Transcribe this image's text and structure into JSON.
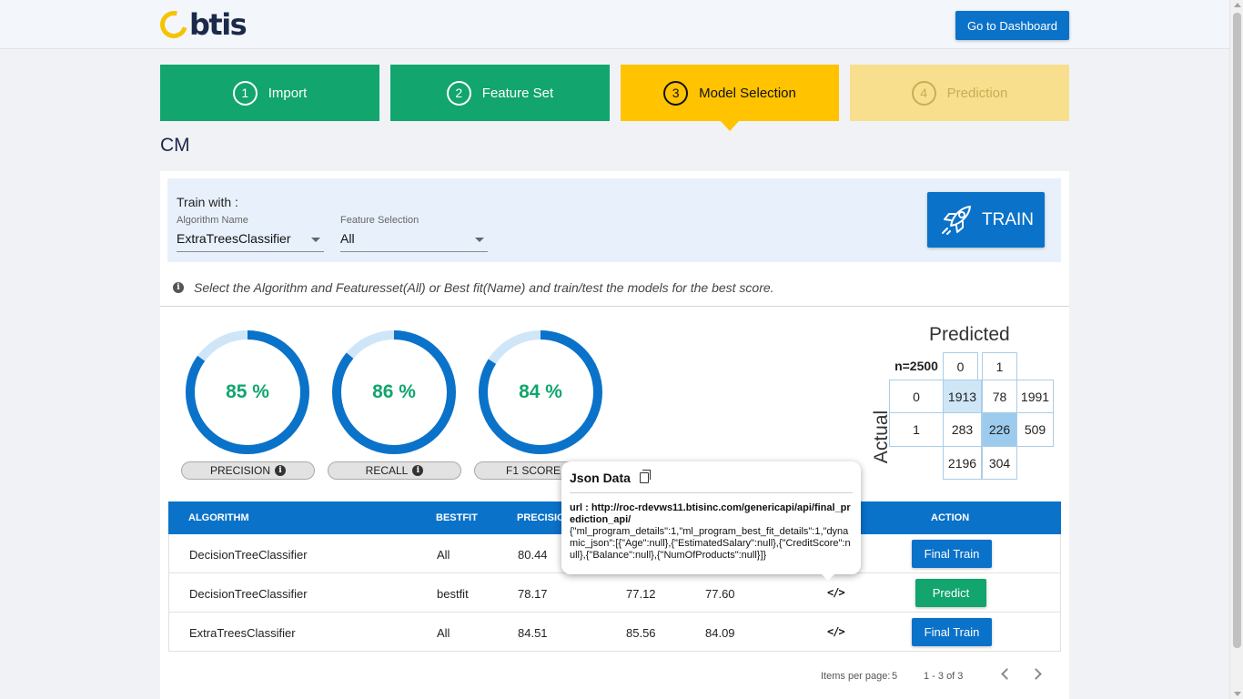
{
  "header": {
    "logo_text": "btis",
    "dashboard_button": "Go to Dashboard"
  },
  "stepper": [
    {
      "number": "1",
      "label": "Import",
      "state": "complete"
    },
    {
      "number": "2",
      "label": "Feature Set",
      "state": "complete"
    },
    {
      "number": "3",
      "label": "Model Selection",
      "state": "active"
    },
    {
      "number": "4",
      "label": "Prediction",
      "state": "pending"
    }
  ],
  "page_title": "CM",
  "train_panel": {
    "title": "Train with :",
    "algorithm": {
      "label": "Algorithm Name",
      "value": "ExtraTreesClassifier"
    },
    "feature": {
      "label": "Feature Selection",
      "value": "All"
    },
    "train_button": "TRAIN"
  },
  "hint": "Select the Algorithm and Featuresset(All) or Best fit(Name) and train/test the models for the best score.",
  "metrics": [
    {
      "label": "PRECISION",
      "value": "85 %",
      "fraction": 0.85
    },
    {
      "label": "RECALL",
      "value": "86 %",
      "fraction": 0.86
    },
    {
      "label": "F1 SCORE",
      "value": "84 %",
      "fraction": 0.84
    }
  ],
  "confusion_matrix": {
    "predicted_label": "Predicted",
    "actual_label": "Actual",
    "n_label": "n=2500",
    "col_headers": [
      "0",
      "1"
    ],
    "row_headers": [
      "0",
      "1"
    ],
    "cells": [
      [
        "1913",
        "78",
        "1991"
      ],
      [
        "283",
        "226",
        "509"
      ]
    ],
    "col_totals": [
      "2196",
      "304"
    ]
  },
  "table": {
    "headers": {
      "algorithm": "ALGORITHM",
      "bestfit": "BESTFIT",
      "precision": "PRECISION",
      "action": "ACTION"
    },
    "rows": [
      {
        "algorithm": "DecisionTreeClassifier",
        "bestfit": "All",
        "precision": "80.44",
        "recall": "",
        "f1": "",
        "action": "Final Train"
      },
      {
        "algorithm": "DecisionTreeClassifier",
        "bestfit": "bestfit",
        "precision": "78.17",
        "recall": "77.12",
        "f1": "77.60",
        "action": "Predict"
      },
      {
        "algorithm": "ExtraTreesClassifier",
        "bestfit": "All",
        "precision": "84.51",
        "recall": "85.56",
        "f1": "84.09",
        "action": "Final Train"
      }
    ]
  },
  "pagination": {
    "items_per_page": "Items per page:",
    "page_size": "5",
    "range": "1 - 3 of 3"
  },
  "tooltip": {
    "title": "Json Data",
    "url": "url : http://roc-rdevws11.btisinc.com/genericapi/api/final_prediction_api/",
    "json": "{\"ml_program_details\":1,\"ml_program_best_fit_details\":1,\"dynamic_json\":[{\"Age\":null},{\"EstimatedSalary\":null},{\"CreditScore\":null},{\"Balance\":null},{\"NumOfProducts\":null}]}"
  },
  "colors": {
    "primary_blue": "#0b72c9",
    "success_green": "#12a56d",
    "active_yellow": "#ffc300",
    "pending_yellow": "#f7df8e"
  }
}
